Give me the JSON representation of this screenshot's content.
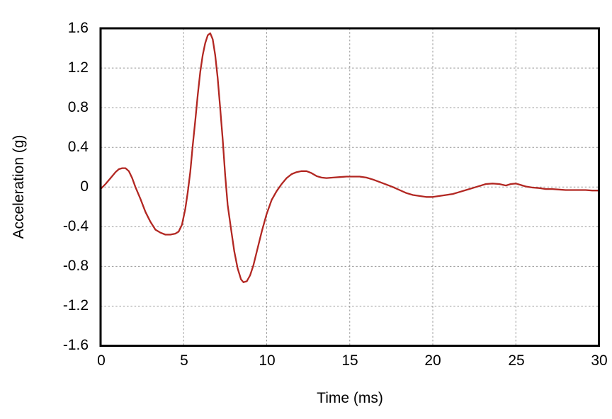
{
  "chart_data": {
    "type": "line",
    "title": "",
    "xlabel": "Time (ms)",
    "ylabel": "Acceleration (g)",
    "xlim": [
      0,
      30
    ],
    "ylim": [
      -1.6,
      1.6
    ],
    "grid": true,
    "legend": "none",
    "line_color": "#b22722",
    "grid_color": "#979797",
    "border_color": "#000000",
    "x_ticks": [
      0,
      5,
      10,
      15,
      20,
      25,
      30
    ],
    "y_ticks": [
      1.6,
      1.2,
      0.8,
      0.4,
      0,
      -0.4,
      -0.8,
      -1.2,
      -1.6
    ],
    "x_tick_labels": [
      "0",
      "5",
      "10",
      "15",
      "20",
      "25",
      "30"
    ],
    "y_tick_labels": [
      "1.6",
      "1.2",
      "0.8",
      "0.4",
      "0",
      "-0.4",
      "-0.8",
      "-1.2",
      "-1.6"
    ],
    "x_gridlines": [
      5,
      10,
      15,
      20,
      25
    ],
    "y_gridlines": [
      1.2,
      0.8,
      0.4,
      0,
      -0.4,
      -0.8,
      -1.2
    ],
    "series": [
      {
        "name": "acceleration",
        "x": [
          0,
          0.3,
          0.6,
          0.9,
          1.1,
          1.3,
          1.5,
          1.7,
          1.9,
          2.1,
          2.4,
          2.7,
          3,
          3.3,
          3.6,
          3.9,
          4.2,
          4.5,
          4.7,
          4.9,
          5.1,
          5.25,
          5.4,
          5.55,
          5.7,
          5.85,
          6,
          6.15,
          6.3,
          6.45,
          6.6,
          6.75,
          6.9,
          7.05,
          7.2,
          7.35,
          7.5,
          7.65,
          7.85,
          8.05,
          8.25,
          8.45,
          8.6,
          8.8,
          9,
          9.2,
          9.45,
          9.7,
          10,
          10.3,
          10.6,
          10.9,
          11.2,
          11.5,
          11.8,
          12.1,
          12.4,
          12.7,
          13,
          13.3,
          13.6,
          14,
          14.4,
          14.8,
          15.2,
          15.6,
          16,
          16.4,
          16.8,
          17.2,
          17.6,
          18,
          18.4,
          18.8,
          19.2,
          19.6,
          20,
          20.4,
          20.8,
          21.2,
          21.6,
          22,
          22.4,
          22.8,
          23.2,
          23.6,
          24,
          24.4,
          24.7,
          25,
          25.3,
          25.6,
          26,
          26.4,
          26.8,
          27.2,
          27.6,
          28,
          28.4,
          28.8,
          29.2,
          29.6,
          30
        ],
        "y": [
          -0.02,
          0.03,
          0.09,
          0.15,
          0.18,
          0.19,
          0.19,
          0.16,
          0.09,
          0,
          -0.12,
          -0.25,
          -0.35,
          -0.43,
          -0.46,
          -0.48,
          -0.48,
          -0.47,
          -0.45,
          -0.38,
          -0.22,
          -0.05,
          0.15,
          0.42,
          0.67,
          0.93,
          1.16,
          1.33,
          1.45,
          1.53,
          1.55,
          1.49,
          1.33,
          1.1,
          0.8,
          0.48,
          0.12,
          -0.18,
          -0.42,
          -0.65,
          -0.82,
          -0.93,
          -0.96,
          -0.95,
          -0.89,
          -0.79,
          -0.62,
          -0.45,
          -0.27,
          -0.13,
          -0.04,
          0.03,
          0.09,
          0.13,
          0.15,
          0.16,
          0.16,
          0.14,
          0.11,
          0.095,
          0.09,
          0.095,
          0.1,
          0.105,
          0.105,
          0.105,
          0.095,
          0.075,
          0.05,
          0.025,
          0,
          -0.03,
          -0.06,
          -0.08,
          -0.09,
          -0.1,
          -0.1,
          -0.09,
          -0.08,
          -0.07,
          -0.05,
          -0.03,
          -0.01,
          0.01,
          0.03,
          0.035,
          0.03,
          0.015,
          0.03,
          0.035,
          0.02,
          0.005,
          -0.005,
          -0.01,
          -0.02,
          -0.02,
          -0.025,
          -0.03,
          -0.03,
          -0.03,
          -0.03,
          -0.035,
          -0.035
        ]
      }
    ]
  }
}
